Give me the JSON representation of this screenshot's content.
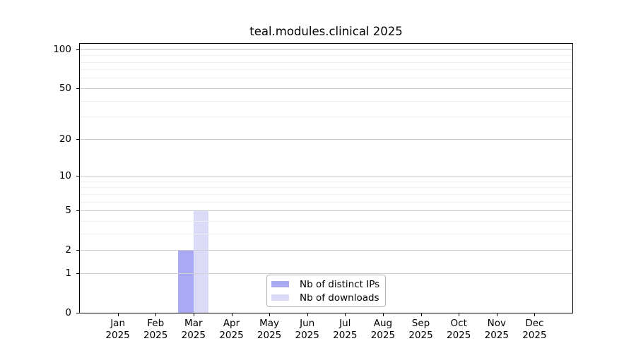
{
  "title": "teal.modules.clinical 2025",
  "chart_data": {
    "type": "bar",
    "title": "teal.modules.clinical 2025",
    "categories": [
      "Jan 2025",
      "Feb 2025",
      "Mar 2025",
      "Apr 2025",
      "May 2025",
      "Jun 2025",
      "Jul 2025",
      "Aug 2025",
      "Sep 2025",
      "Oct 2025",
      "Nov 2025",
      "Dec 2025"
    ],
    "series": [
      {
        "name": "Nb of distinct IPs",
        "color": "#a9a9f4",
        "values": [
          0,
          0,
          2,
          0,
          0,
          0,
          0,
          0,
          0,
          0,
          0,
          0
        ]
      },
      {
        "name": "Nb of downloads",
        "color": "#dbdbf8",
        "values": [
          0,
          0,
          5,
          0,
          0,
          0,
          0,
          0,
          0,
          0,
          0,
          0
        ]
      }
    ],
    "xlabel": "",
    "ylabel": "",
    "yscale": "log10(1+x)",
    "ylim": [
      0,
      110
    ],
    "yticks": [
      0,
      1,
      2,
      5,
      10,
      20,
      50,
      100
    ],
    "minor_gridlines": [
      3,
      4,
      6,
      7,
      8,
      9,
      30,
      40,
      60,
      70,
      80,
      90
    ],
    "grid": true,
    "legend_position": "inside-bottom-center"
  },
  "colors": {
    "background": "#ffffff",
    "spine": "#000000",
    "grid_major": "#cccccc",
    "grid_minor": "#efefef",
    "legend_border": "#b5b5b5"
  }
}
